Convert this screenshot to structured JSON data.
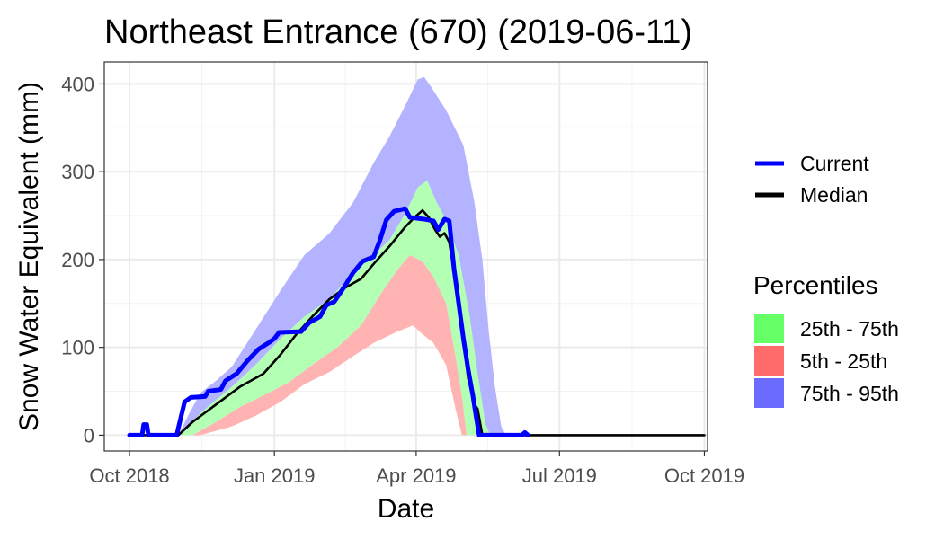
{
  "chart_data": {
    "type": "area",
    "title": "Northeast Entrance (670) (2019-06-11)",
    "xlabel": "Date",
    "ylabel": "Snow Water Equivalent (mm)",
    "x_ticks": [
      {
        "label": "Oct 2018",
        "date": "2018-10-01"
      },
      {
        "label": "Jan 2019",
        "date": "2019-01-01"
      },
      {
        "label": "Apr 2019",
        "date": "2019-04-01"
      },
      {
        "label": "Jul 2019",
        "date": "2019-07-01"
      },
      {
        "label": "Oct 2019",
        "date": "2019-10-01"
      }
    ],
    "y_ticks": [
      0,
      100,
      200,
      300,
      400
    ],
    "xlim": [
      "2018-09-15",
      "2019-10-03"
    ],
    "ylim": [
      -18,
      425
    ],
    "grid": true,
    "legend_placement": "right",
    "legend_lines_title": "",
    "legend_bands_title": "Percentiles",
    "lines": [
      {
        "key": "current",
        "name": "Current",
        "color": "#0000ff",
        "points": [
          [
            "2018-10-01",
            0
          ],
          [
            "2018-10-09",
            0
          ],
          [
            "2018-10-10",
            12
          ],
          [
            "2018-10-12",
            12
          ],
          [
            "2018-10-13",
            0
          ],
          [
            "2018-10-31",
            0
          ],
          [
            "2018-11-01",
            8
          ],
          [
            "2018-11-05",
            38
          ],
          [
            "2018-11-09",
            43
          ],
          [
            "2018-11-18",
            44
          ],
          [
            "2018-11-20",
            50
          ],
          [
            "2018-11-28",
            52
          ],
          [
            "2018-12-01",
            62
          ],
          [
            "2018-12-08",
            70
          ],
          [
            "2018-12-15",
            85
          ],
          [
            "2018-12-22",
            98
          ],
          [
            "2018-12-29",
            106
          ],
          [
            "2019-01-01",
            110
          ],
          [
            "2019-01-04",
            117
          ],
          [
            "2019-01-18",
            118
          ],
          [
            "2019-01-23",
            128
          ],
          [
            "2019-01-30",
            135
          ],
          [
            "2019-02-03",
            148
          ],
          [
            "2019-02-08",
            152
          ],
          [
            "2019-02-14",
            168
          ],
          [
            "2019-02-20",
            185
          ],
          [
            "2019-02-26",
            198
          ],
          [
            "2019-03-05",
            203
          ],
          [
            "2019-03-09",
            222
          ],
          [
            "2019-03-13",
            245
          ],
          [
            "2019-03-18",
            255
          ],
          [
            "2019-03-25",
            258
          ],
          [
            "2019-03-28",
            248
          ],
          [
            "2019-04-06",
            246
          ],
          [
            "2019-04-12",
            244
          ],
          [
            "2019-04-15",
            234
          ],
          [
            "2019-04-19",
            246
          ],
          [
            "2019-04-22",
            244
          ],
          [
            "2019-04-25",
            190
          ],
          [
            "2019-04-28",
            150
          ],
          [
            "2019-05-01",
            110
          ],
          [
            "2019-05-04",
            75
          ],
          [
            "2019-05-07",
            45
          ],
          [
            "2019-05-09",
            22
          ],
          [
            "2019-05-11",
            0
          ],
          [
            "2019-06-07",
            0
          ],
          [
            "2019-06-09",
            3
          ],
          [
            "2019-06-11",
            0
          ]
        ]
      },
      {
        "key": "median",
        "name": "Median",
        "color": "#000000",
        "points": [
          [
            "2018-10-01",
            0
          ],
          [
            "2018-11-01",
            0
          ],
          [
            "2018-11-10",
            15
          ],
          [
            "2018-11-25",
            35
          ],
          [
            "2018-12-10",
            55
          ],
          [
            "2018-12-25",
            70
          ],
          [
            "2019-01-05",
            92
          ],
          [
            "2019-01-15",
            115
          ],
          [
            "2019-01-25",
            135
          ],
          [
            "2019-02-05",
            155
          ],
          [
            "2019-02-15",
            168
          ],
          [
            "2019-02-25",
            178
          ],
          [
            "2019-03-05",
            195
          ],
          [
            "2019-03-15",
            215
          ],
          [
            "2019-03-25",
            237
          ],
          [
            "2019-03-31",
            248
          ],
          [
            "2019-04-05",
            256
          ],
          [
            "2019-04-09",
            248
          ],
          [
            "2019-04-13",
            234
          ],
          [
            "2019-04-16",
            226
          ],
          [
            "2019-04-19",
            230
          ],
          [
            "2019-04-22",
            220
          ],
          [
            "2019-04-26",
            175
          ],
          [
            "2019-04-30",
            120
          ],
          [
            "2019-05-04",
            65
          ],
          [
            "2019-05-08",
            35
          ],
          [
            "2019-05-10",
            30
          ],
          [
            "2019-05-13",
            0
          ],
          [
            "2019-10-01",
            0
          ]
        ]
      }
    ],
    "bands": [
      {
        "key": "p75_95",
        "name": "75th - 95th",
        "legend_color": "#6b6bff",
        "fill": "#b3b3ff",
        "upper": [
          [
            "2018-11-01",
            0
          ],
          [
            "2018-11-08",
            25
          ],
          [
            "2018-11-15",
            48
          ],
          [
            "2018-11-25",
            62
          ],
          [
            "2018-12-05",
            78
          ],
          [
            "2018-12-20",
            120
          ],
          [
            "2019-01-05",
            165
          ],
          [
            "2019-01-20",
            205
          ],
          [
            "2019-02-05",
            230
          ],
          [
            "2019-02-20",
            265
          ],
          [
            "2019-03-05",
            310
          ],
          [
            "2019-03-15",
            340
          ],
          [
            "2019-03-25",
            375
          ],
          [
            "2019-04-02",
            405
          ],
          [
            "2019-04-06",
            408
          ],
          [
            "2019-04-10",
            398
          ],
          [
            "2019-04-20",
            370
          ],
          [
            "2019-05-01",
            330
          ],
          [
            "2019-05-08",
            265
          ],
          [
            "2019-05-13",
            200
          ],
          [
            "2019-05-17",
            120
          ],
          [
            "2019-05-21",
            55
          ],
          [
            "2019-05-25",
            10
          ],
          [
            "2019-05-28",
            0
          ]
        ],
        "lower": [
          [
            "2018-11-01",
            0
          ],
          [
            "2018-11-15",
            25
          ],
          [
            "2018-11-25",
            40
          ],
          [
            "2018-12-05",
            55
          ],
          [
            "2018-12-20",
            80
          ],
          [
            "2019-01-05",
            110
          ],
          [
            "2019-01-20",
            135
          ],
          [
            "2019-02-05",
            155
          ],
          [
            "2019-02-20",
            185
          ],
          [
            "2019-03-05",
            205
          ],
          [
            "2019-03-15",
            222
          ],
          [
            "2019-03-25",
            252
          ],
          [
            "2019-04-02",
            282
          ],
          [
            "2019-04-08",
            290
          ],
          [
            "2019-04-14",
            265
          ],
          [
            "2019-04-20",
            245
          ],
          [
            "2019-04-28",
            205
          ],
          [
            "2019-05-05",
            135
          ],
          [
            "2019-05-10",
            70
          ],
          [
            "2019-05-15",
            12
          ],
          [
            "2019-05-18",
            0
          ]
        ]
      },
      {
        "key": "p25_75",
        "name": "25th - 75th",
        "legend_color": "#66ff66",
        "fill": "#b3ffb3",
        "upper": [
          [
            "2018-11-01",
            0
          ],
          [
            "2018-11-15",
            25
          ],
          [
            "2018-11-25",
            40
          ],
          [
            "2018-12-05",
            55
          ],
          [
            "2018-12-20",
            80
          ],
          [
            "2019-01-05",
            110
          ],
          [
            "2019-01-20",
            135
          ],
          [
            "2019-02-05",
            155
          ],
          [
            "2019-02-20",
            185
          ],
          [
            "2019-03-05",
            205
          ],
          [
            "2019-03-15",
            222
          ],
          [
            "2019-03-25",
            252
          ],
          [
            "2019-04-02",
            282
          ],
          [
            "2019-04-08",
            290
          ],
          [
            "2019-04-14",
            265
          ],
          [
            "2019-04-20",
            245
          ],
          [
            "2019-04-28",
            205
          ],
          [
            "2019-05-05",
            135
          ],
          [
            "2019-05-10",
            70
          ],
          [
            "2019-05-15",
            12
          ],
          [
            "2019-05-18",
            0
          ]
        ],
        "lower": [
          [
            "2018-11-10",
            0
          ],
          [
            "2018-11-25",
            15
          ],
          [
            "2018-12-10",
            32
          ],
          [
            "2018-12-25",
            45
          ],
          [
            "2019-01-10",
            60
          ],
          [
            "2019-01-25",
            80
          ],
          [
            "2019-02-10",
            100
          ],
          [
            "2019-02-25",
            125
          ],
          [
            "2019-03-10",
            162
          ],
          [
            "2019-03-20",
            188
          ],
          [
            "2019-03-28",
            205
          ],
          [
            "2019-04-05",
            198
          ],
          [
            "2019-04-12",
            180
          ],
          [
            "2019-04-20",
            150
          ],
          [
            "2019-04-25",
            100
          ],
          [
            "2019-04-30",
            45
          ],
          [
            "2019-05-03",
            0
          ]
        ]
      },
      {
        "key": "p5_25",
        "name": "5th - 25th",
        "legend_color": "#ff6b6b",
        "fill": "#ffb3b3",
        "upper": [
          [
            "2018-11-10",
            0
          ],
          [
            "2018-11-25",
            15
          ],
          [
            "2018-12-10",
            32
          ],
          [
            "2018-12-25",
            45
          ],
          [
            "2019-01-10",
            60
          ],
          [
            "2019-01-25",
            80
          ],
          [
            "2019-02-10",
            100
          ],
          [
            "2019-02-25",
            125
          ],
          [
            "2019-03-10",
            162
          ],
          [
            "2019-03-20",
            188
          ],
          [
            "2019-03-28",
            205
          ],
          [
            "2019-04-05",
            198
          ],
          [
            "2019-04-12",
            180
          ],
          [
            "2019-04-20",
            150
          ],
          [
            "2019-04-25",
            100
          ],
          [
            "2019-04-30",
            45
          ],
          [
            "2019-05-03",
            0
          ]
        ],
        "lower": [
          [
            "2018-11-15",
            0
          ],
          [
            "2018-12-05",
            10
          ],
          [
            "2018-12-20",
            22
          ],
          [
            "2019-01-05",
            38
          ],
          [
            "2019-01-20",
            58
          ],
          [
            "2019-02-05",
            72
          ],
          [
            "2019-02-20",
            90
          ],
          [
            "2019-03-05",
            105
          ],
          [
            "2019-03-20",
            118
          ],
          [
            "2019-03-30",
            125
          ],
          [
            "2019-04-05",
            115
          ],
          [
            "2019-04-12",
            105
          ],
          [
            "2019-04-20",
            80
          ],
          [
            "2019-04-26",
            30
          ],
          [
            "2019-04-30",
            0
          ]
        ]
      }
    ]
  }
}
